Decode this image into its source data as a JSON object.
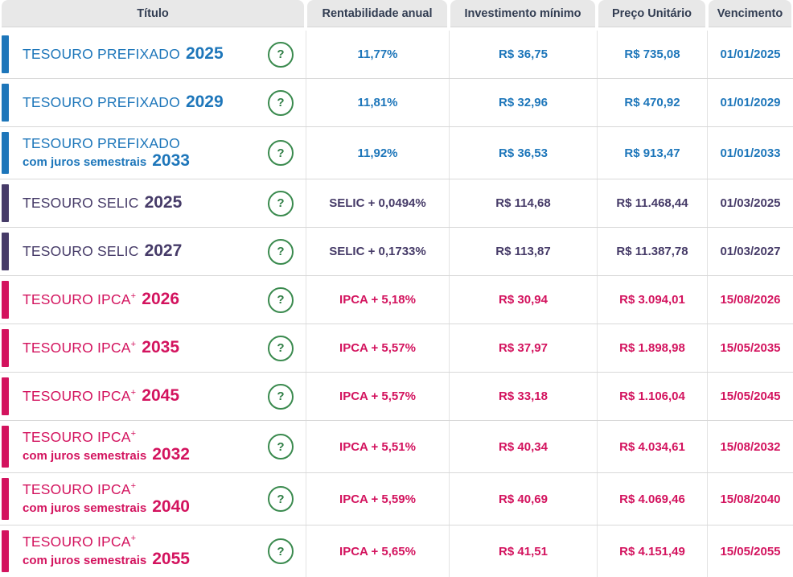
{
  "table": {
    "headers": [
      "Título",
      "Rentabilidade anual",
      "Investimento mínimo",
      "Preço Unitário",
      "Vencimento"
    ],
    "help_icon_label": "?",
    "colors": {
      "prefixado": "#1d76ba",
      "selic": "#463b68",
      "ipca": "#d3135e",
      "header_bg": "#e8e8e8",
      "header_text": "#323d52",
      "help_green": "#3a8a4e",
      "row_border": "#d8d8d8"
    },
    "rows": [
      {
        "category": "prefixado",
        "name": "TESOURO PREFIXADO",
        "name_sup": "",
        "subtitle": "",
        "year": "2025",
        "rate": "11,77%",
        "min_investment": "R$ 36,75",
        "unit_price": "R$ 735,08",
        "maturity": "01/01/2025"
      },
      {
        "category": "prefixado",
        "name": "TESOURO PREFIXADO",
        "name_sup": "",
        "subtitle": "",
        "year": "2029",
        "rate": "11,81%",
        "min_investment": "R$ 32,96",
        "unit_price": "R$ 470,92",
        "maturity": "01/01/2029"
      },
      {
        "category": "prefixado",
        "name": "TESOURO PREFIXADO",
        "name_sup": "",
        "subtitle": "com juros semestrais",
        "year": "2033",
        "rate": "11,92%",
        "min_investment": "R$ 36,53",
        "unit_price": "R$ 913,47",
        "maturity": "01/01/2033"
      },
      {
        "category": "selic",
        "name": "TESOURO SELIC",
        "name_sup": "",
        "subtitle": "",
        "year": "2025",
        "rate": "SELIC + 0,0494%",
        "min_investment": "R$ 114,68",
        "unit_price": "R$ 11.468,44",
        "maturity": "01/03/2025"
      },
      {
        "category": "selic",
        "name": "TESOURO SELIC",
        "name_sup": "",
        "subtitle": "",
        "year": "2027",
        "rate": "SELIC + 0,1733%",
        "min_investment": "R$ 113,87",
        "unit_price": "R$ 11.387,78",
        "maturity": "01/03/2027"
      },
      {
        "category": "ipca",
        "name": "TESOURO IPCA",
        "name_sup": "+",
        "subtitle": "",
        "year": "2026",
        "rate": "IPCA + 5,18%",
        "min_investment": "R$ 30,94",
        "unit_price": "R$ 3.094,01",
        "maturity": "15/08/2026"
      },
      {
        "category": "ipca",
        "name": "TESOURO IPCA",
        "name_sup": "+",
        "subtitle": "",
        "year": "2035",
        "rate": "IPCA + 5,57%",
        "min_investment": "R$ 37,97",
        "unit_price": "R$ 1.898,98",
        "maturity": "15/05/2035"
      },
      {
        "category": "ipca",
        "name": "TESOURO IPCA",
        "name_sup": "+",
        "subtitle": "",
        "year": "2045",
        "rate": "IPCA + 5,57%",
        "min_investment": "R$ 33,18",
        "unit_price": "R$ 1.106,04",
        "maturity": "15/05/2045"
      },
      {
        "category": "ipca",
        "name": "TESOURO IPCA",
        "name_sup": "+",
        "subtitle": "com juros semestrais",
        "year": "2032",
        "rate": "IPCA + 5,51%",
        "min_investment": "R$ 40,34",
        "unit_price": "R$ 4.034,61",
        "maturity": "15/08/2032"
      },
      {
        "category": "ipca",
        "name": "TESOURO IPCA",
        "name_sup": "+",
        "subtitle": "com juros semestrais",
        "year": "2040",
        "rate": "IPCA + 5,59%",
        "min_investment": "R$ 40,69",
        "unit_price": "R$ 4.069,46",
        "maturity": "15/08/2040"
      },
      {
        "category": "ipca",
        "name": "TESOURO IPCA",
        "name_sup": "+",
        "subtitle": "com juros semestrais",
        "year": "2055",
        "rate": "IPCA + 5,65%",
        "min_investment": "R$ 41,51",
        "unit_price": "R$ 4.151,49",
        "maturity": "15/05/2055"
      }
    ]
  }
}
